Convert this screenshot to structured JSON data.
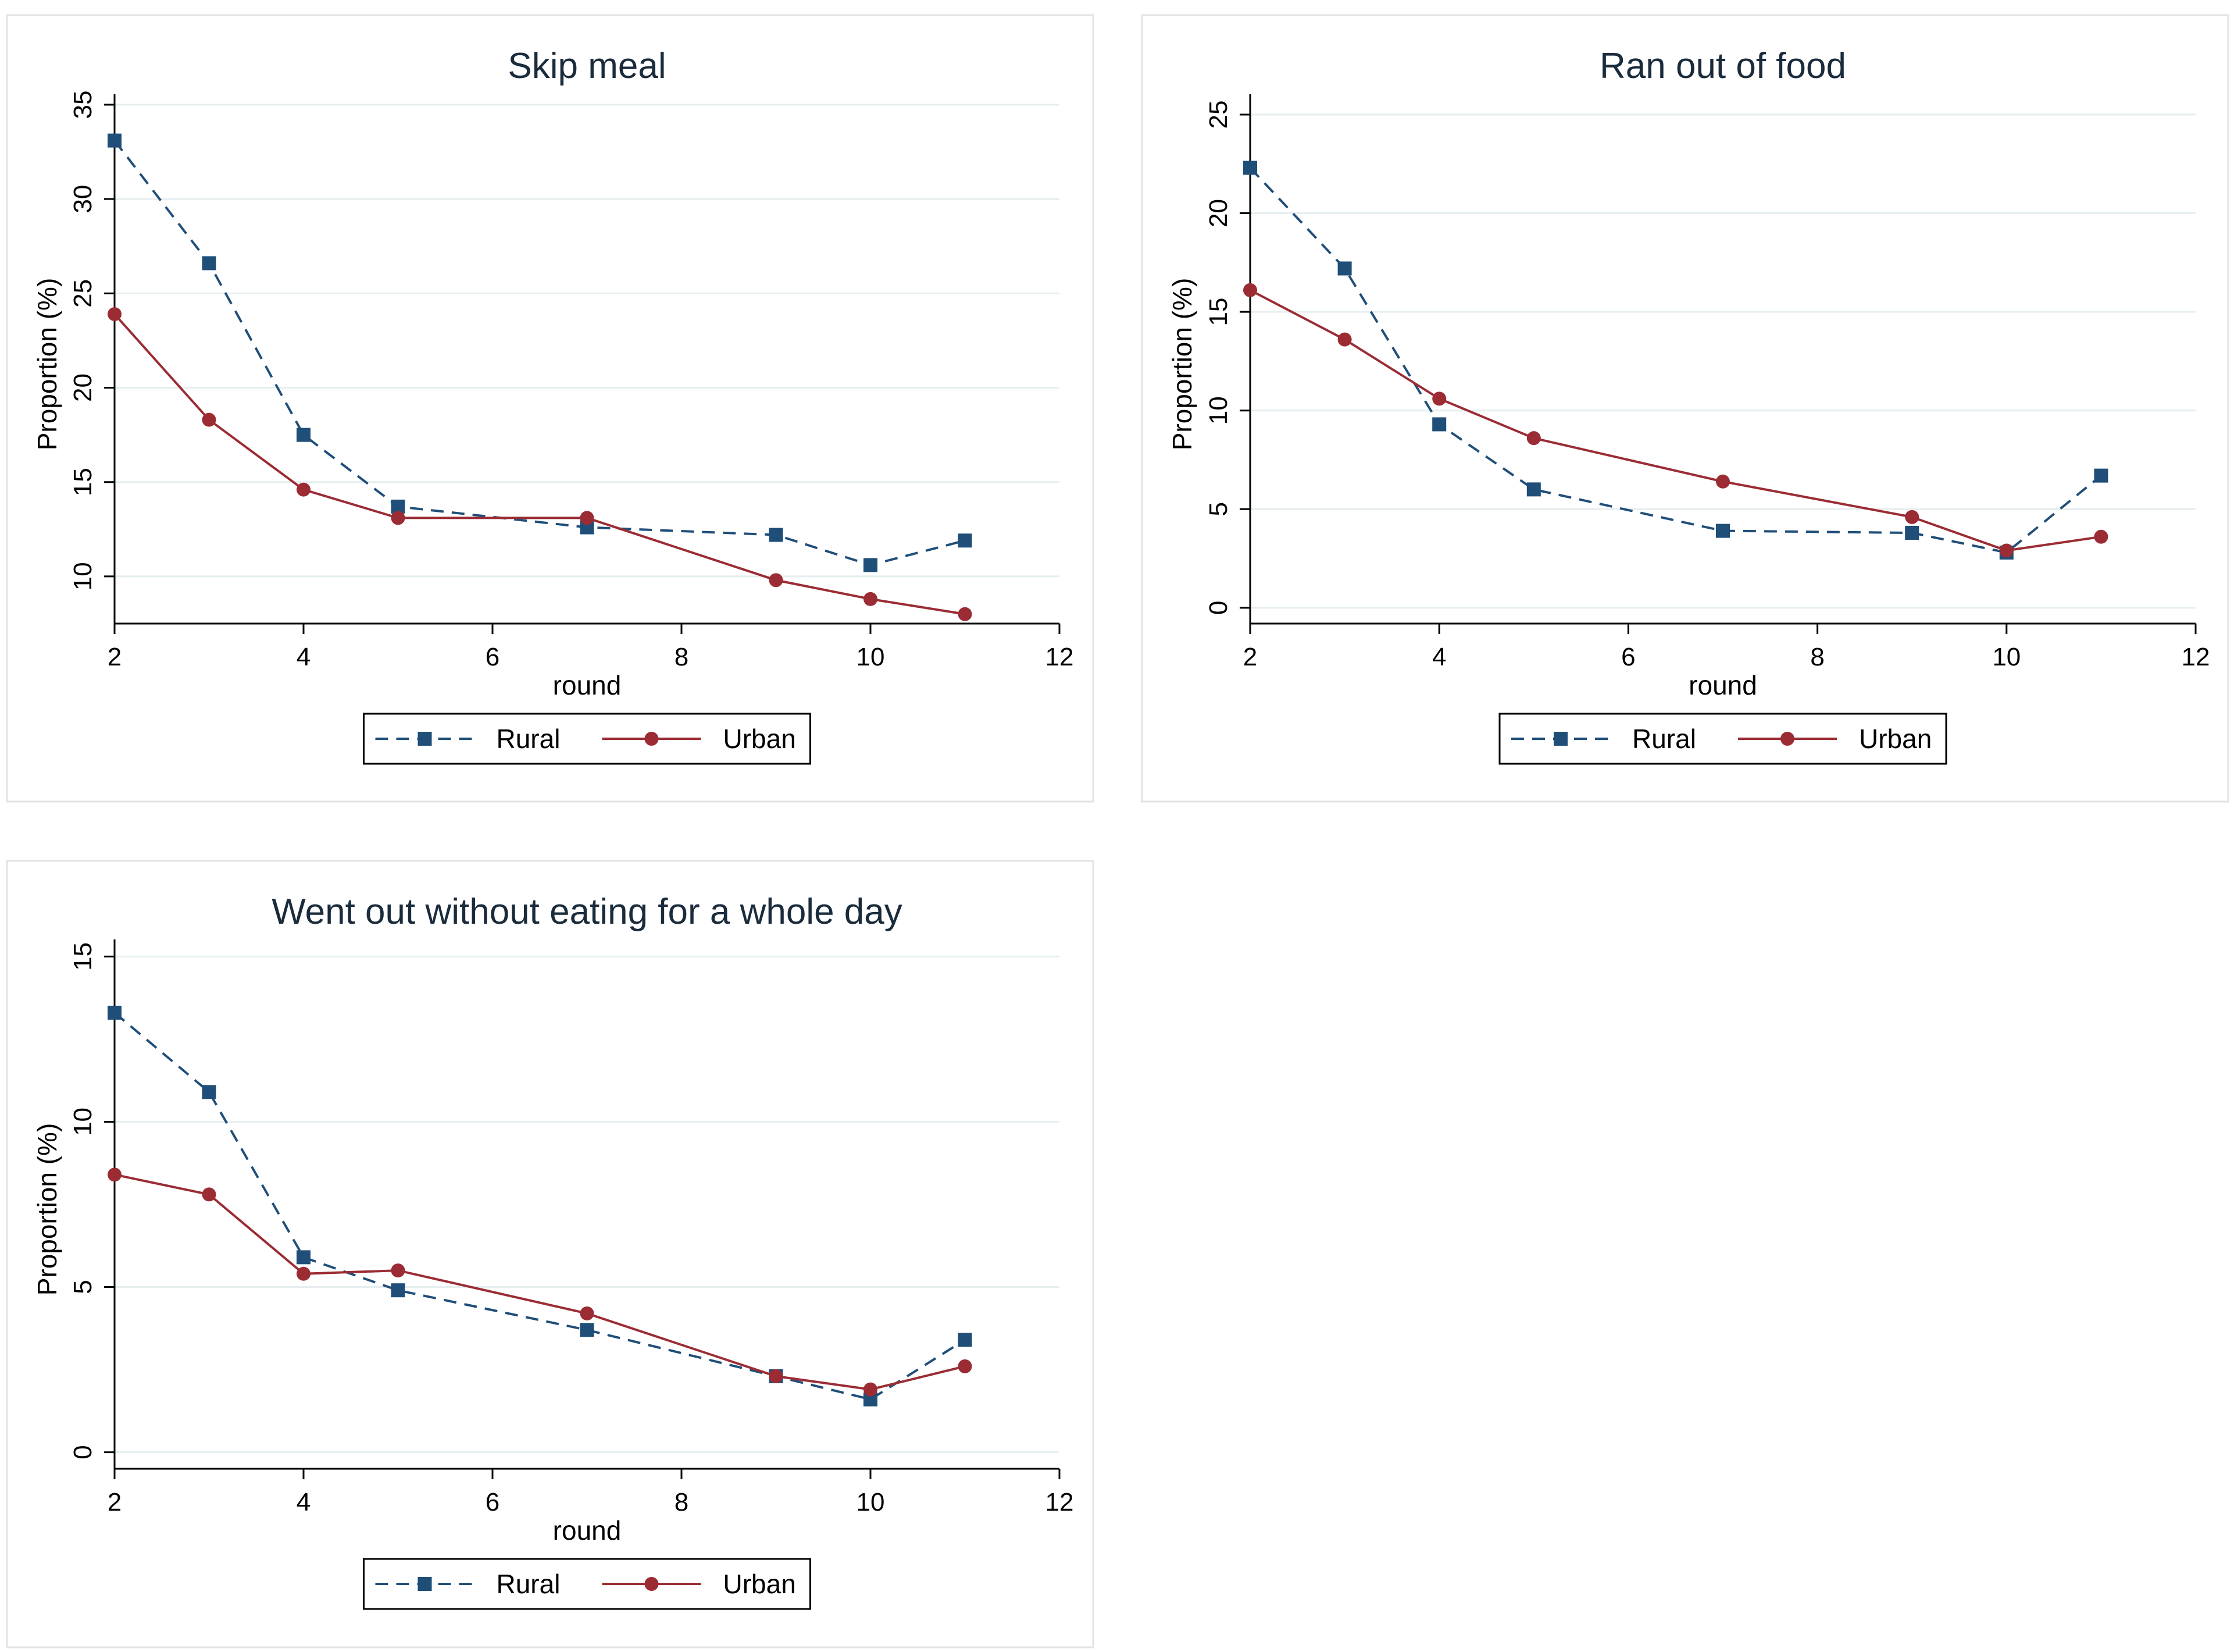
{
  "colors": {
    "rural": "#1f4e79",
    "urban": "#9b2c34",
    "grid": "#e6eef0",
    "axis": "#000000",
    "title": "#1a2b3c",
    "panel_border": "#e3e3e3",
    "text": "#000000"
  },
  "chart_data": [
    {
      "type": "line",
      "title": "Skip meal",
      "xlabel": "round",
      "ylabel": "Proportion (%)",
      "xlim": [
        2,
        12
      ],
      "ylim": [
        7.5,
        35
      ],
      "xticks": [
        2,
        4,
        6,
        8,
        10,
        12
      ],
      "yticks": [
        10,
        15,
        20,
        25,
        30,
        35
      ],
      "grid": true,
      "legend": "bottom",
      "series": [
        {
          "name": "Rural",
          "style": "dashed",
          "marker": "square",
          "x": [
            2,
            3,
            4,
            5,
            7,
            9,
            10,
            11
          ],
          "values": [
            33.1,
            26.6,
            17.5,
            13.7,
            12.6,
            12.2,
            10.6,
            11.9
          ]
        },
        {
          "name": "Urban",
          "style": "solid",
          "marker": "circle",
          "x": [
            2,
            3,
            4,
            5,
            7,
            9,
            10,
            11
          ],
          "values": [
            23.9,
            18.3,
            14.6,
            13.1,
            13.1,
            9.8,
            8.8,
            8.0
          ]
        }
      ]
    },
    {
      "type": "line",
      "title": "Ran out of food",
      "xlabel": "round",
      "ylabel": "Proportion (%)",
      "xlim": [
        2,
        12
      ],
      "ylim": [
        -0.8,
        25.5
      ],
      "xticks": [
        2,
        4,
        6,
        8,
        10,
        12
      ],
      "yticks": [
        0,
        5,
        10,
        15,
        20,
        25
      ],
      "grid": true,
      "legend": "bottom",
      "series": [
        {
          "name": "Rural",
          "style": "dashed",
          "marker": "square",
          "x": [
            2,
            3,
            4,
            5,
            7,
            9,
            10,
            11
          ],
          "values": [
            22.3,
            17.2,
            9.3,
            6.0,
            3.9,
            3.8,
            2.8,
            6.7
          ]
        },
        {
          "name": "Urban",
          "style": "solid",
          "marker": "circle",
          "x": [
            2,
            3,
            4,
            5,
            7,
            9,
            10,
            11
          ],
          "values": [
            16.1,
            13.6,
            10.6,
            8.6,
            6.4,
            4.6,
            2.9,
            3.6
          ]
        }
      ]
    },
    {
      "type": "line",
      "title": "Went out without eating for a whole day",
      "xlabel": "round",
      "ylabel": "Proportion (%)",
      "xlim": [
        2,
        12
      ],
      "ylim": [
        -0.5,
        15.2
      ],
      "xticks": [
        2,
        4,
        6,
        8,
        10,
        12
      ],
      "yticks": [
        0,
        5,
        10,
        15
      ],
      "grid": true,
      "legend": "bottom",
      "series": [
        {
          "name": "Rural",
          "style": "dashed",
          "marker": "square",
          "x": [
            2,
            3,
            4,
            5,
            7,
            9,
            10,
            11
          ],
          "values": [
            13.3,
            10.9,
            5.9,
            4.9,
            3.7,
            2.3,
            1.6,
            3.4
          ]
        },
        {
          "name": "Urban",
          "style": "solid",
          "marker": "circle",
          "x": [
            2,
            3,
            4,
            5,
            7,
            9,
            10,
            11
          ],
          "values": [
            8.4,
            7.8,
            5.4,
            5.5,
            4.2,
            2.3,
            1.9,
            2.6
          ]
        }
      ]
    }
  ]
}
